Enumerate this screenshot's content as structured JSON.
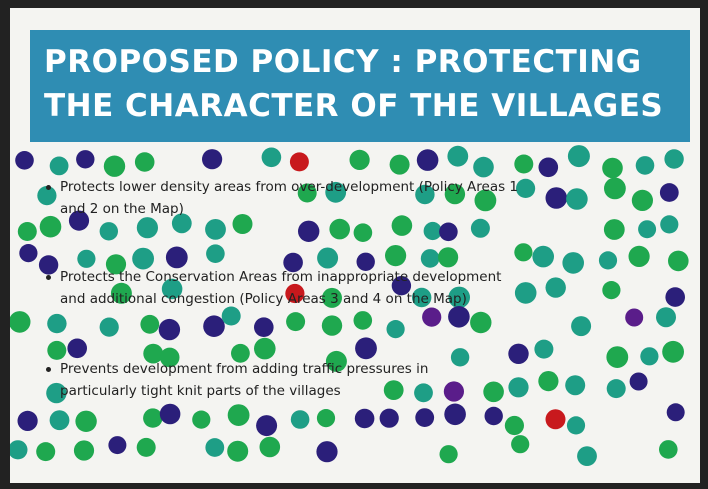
{
  "poster": {
    "title": "PROPOSED POLICY : PROTECTING THE CHARACTER OF THE VILLAGES",
    "bullets": [
      "Protects lower density areas from over-development (Policy Areas 1 and 2 on the Map)",
      "Protects the Conservation Areas from inappropriate development and additional congestion (Policy Areas 3 and 4 on the Map)",
      "Prevents development from adding traffic pressures in particularly tight knit parts of the villages"
    ]
  }
}
